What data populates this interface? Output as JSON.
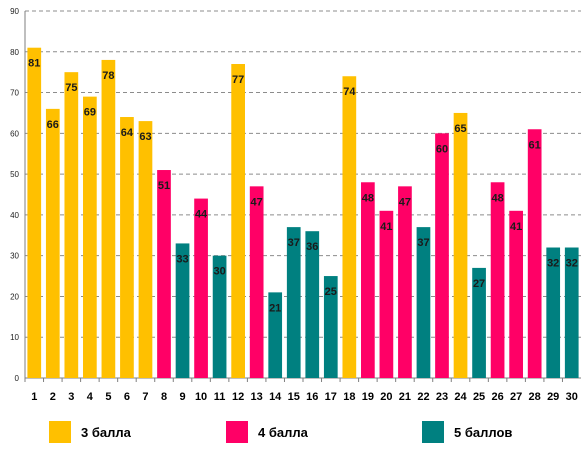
{
  "colors": {
    "gold": "#FFC000",
    "pink": "#FF0066",
    "teal": "#008080",
    "grid": "#8c8c8c"
  },
  "legend": [
    {
      "label": "3 балла",
      "color": "#FFC000"
    },
    {
      "label": "4 балла",
      "color": "#FF0066"
    },
    {
      "label": "5 баллов",
      "color": "#008080"
    }
  ],
  "chart_data": {
    "type": "bar",
    "ylim": [
      0,
      90
    ],
    "yticks": [
      0,
      10,
      20,
      30,
      40,
      50,
      60,
      70,
      80,
      90
    ],
    "grid": true,
    "legend_position": "bottom",
    "categories": [
      "1",
      "2",
      "3",
      "4",
      "5",
      "6",
      "7",
      "8",
      "9",
      "10",
      "11",
      "12",
      "13",
      "14",
      "15",
      "16",
      "17",
      "18",
      "19",
      "20",
      "21",
      "22",
      "23",
      "24",
      "25",
      "26",
      "27",
      "28",
      "29",
      "30"
    ],
    "values": [
      81,
      66,
      75,
      69,
      78,
      64,
      63,
      51,
      33,
      44,
      30,
      77,
      47,
      21,
      37,
      36,
      25,
      74,
      48,
      41,
      47,
      37,
      60,
      65,
      27,
      48,
      41,
      61,
      32,
      32
    ],
    "grades": [
      "3 балла",
      "3 балла",
      "3 балла",
      "3 балла",
      "3 балла",
      "3 балла",
      "3 балла",
      "4 балла",
      "5 баллов",
      "4 балла",
      "5 баллов",
      "3 балла",
      "4 балла",
      "5 баллов",
      "5 баллов",
      "5 баллов",
      "5 баллов",
      "3 балла",
      "4 балла",
      "4 балла",
      "4 балла",
      "5 баллов",
      "4 балла",
      "3 балла",
      "5 баллов",
      "4 балла",
      "4 балла",
      "4 балла",
      "5 баллов",
      "5 баллов"
    ]
  }
}
